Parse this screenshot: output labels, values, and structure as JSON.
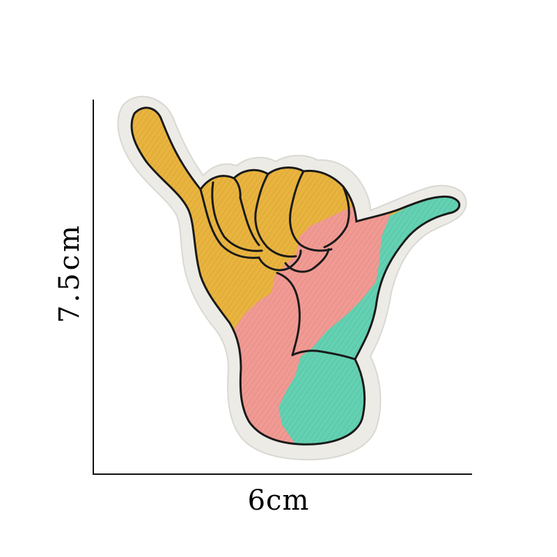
{
  "dimensions": {
    "width_label": "6cm",
    "height_label": "7.5cm"
  },
  "patch": {
    "subject": "shaka-hand-embroidered-patch",
    "colors": {
      "border": "#ecebe6",
      "yellow": "#e9b43e",
      "pink": "#f19a93",
      "teal": "#63d1b2",
      "outline": "#1a1a1a"
    }
  }
}
